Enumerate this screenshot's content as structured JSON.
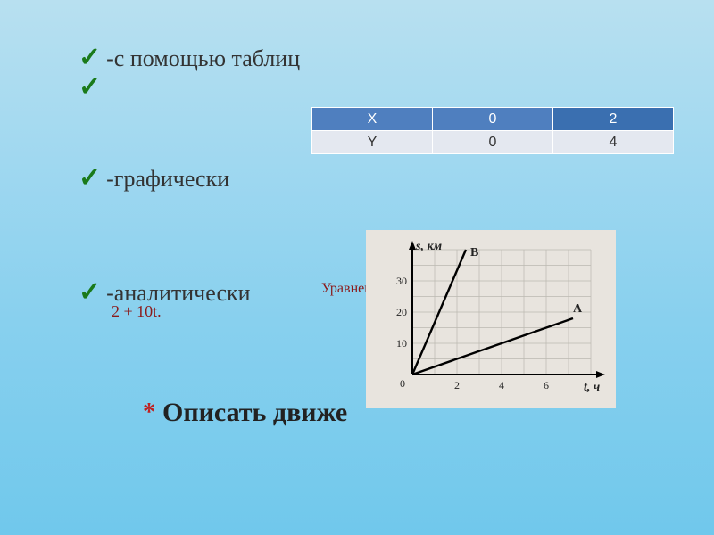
{
  "bullets": {
    "item1": "-с помощью таблиц",
    "item2": "",
    "item3": "-графически",
    "item4": "-аналитически"
  },
  "equation": {
    "label": "Уравнен",
    "formula": "2 + 10t."
  },
  "title": "Описать движе",
  "table": {
    "headers": [
      "X",
      "0",
      "2"
    ],
    "row": [
      "Y",
      "0",
      "4"
    ],
    "header_bg": "#4f7fbf",
    "header_bg_last": "#3a6fb0",
    "body_bg": "#e4e8f0"
  },
  "chart": {
    "type": "line",
    "y_label": "s, км",
    "x_label": "t, ч",
    "y_ticks": [
      0,
      10,
      20,
      30
    ],
    "x_ticks": [
      0,
      2,
      4,
      6
    ],
    "y_max": 40,
    "x_max": 8,
    "series": [
      {
        "name": "B",
        "points": [
          [
            0,
            0
          ],
          [
            2.4,
            40
          ]
        ],
        "label_pos": [
          2.6,
          38
        ]
      },
      {
        "name": "A",
        "points": [
          [
            0,
            0
          ],
          [
            7.2,
            18
          ]
        ],
        "label_pos": [
          7.2,
          20
        ]
      }
    ],
    "grid_color": "#bbb8b0",
    "axis_color": "#000",
    "line_color": "#000",
    "background": "#e8e4de"
  }
}
